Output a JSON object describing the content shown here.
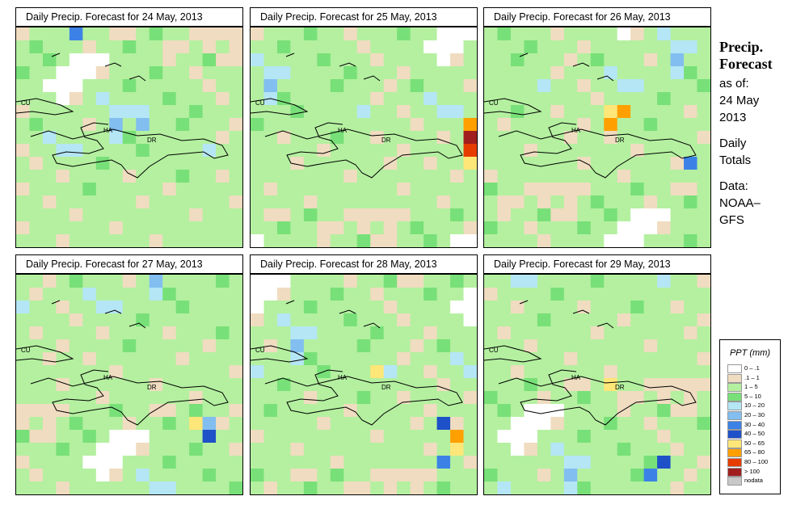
{
  "panels": [
    {
      "title": "Daily Precip. Forecast for  24 May, 2013"
    },
    {
      "title": "Daily Precip. Forecast for  25 May, 2013"
    },
    {
      "title": "Daily Precip. Forecast for  26 May, 2013"
    },
    {
      "title": "Daily Precip. Forecast for  27 May, 2013"
    },
    {
      "title": "Daily Precip. Forecast for  28 May, 2013"
    },
    {
      "title": "Daily Precip. Forecast for  29 May, 2013"
    }
  ],
  "map_labels": {
    "cu": "CU",
    "ha": "HA",
    "dr": "DR"
  },
  "side": {
    "head1": "Precip.",
    "head2": "Forecast",
    "asof": "as of:",
    "date1": "24 May",
    "date2": "2013",
    "daily1": "Daily",
    "daily2": "Totals",
    "data1": "Data:",
    "data2": "NOAA–",
    "data3": "GFS"
  },
  "legend": {
    "title": "PPT (mm)",
    "items": [
      {
        "label": "0 – .1",
        "color": "#ffffff"
      },
      {
        "label": ".1 – 1",
        "color": "#f0dcc0"
      },
      {
        "label": "1 – 5",
        "color": "#b4f0a0"
      },
      {
        "label": "5 – 10",
        "color": "#78e078"
      },
      {
        "label": "10 – 20",
        "color": "#b4e6f5"
      },
      {
        "label": "20 – 30",
        "color": "#82bef0"
      },
      {
        "label": "30 – 40",
        "color": "#3c82e6"
      },
      {
        "label": "40 – 50",
        "color": "#1e50c8"
      },
      {
        "label": "50 – 65",
        "color": "#ffe678"
      },
      {
        "label": "65 – 80",
        "color": "#ffa000"
      },
      {
        "label": "80 – 100",
        "color": "#e63c00"
      },
      {
        "label": "> 100",
        "color": "#a01e1e"
      },
      {
        "label": "nodata",
        "color": "#c8c8c8"
      }
    ]
  }
}
